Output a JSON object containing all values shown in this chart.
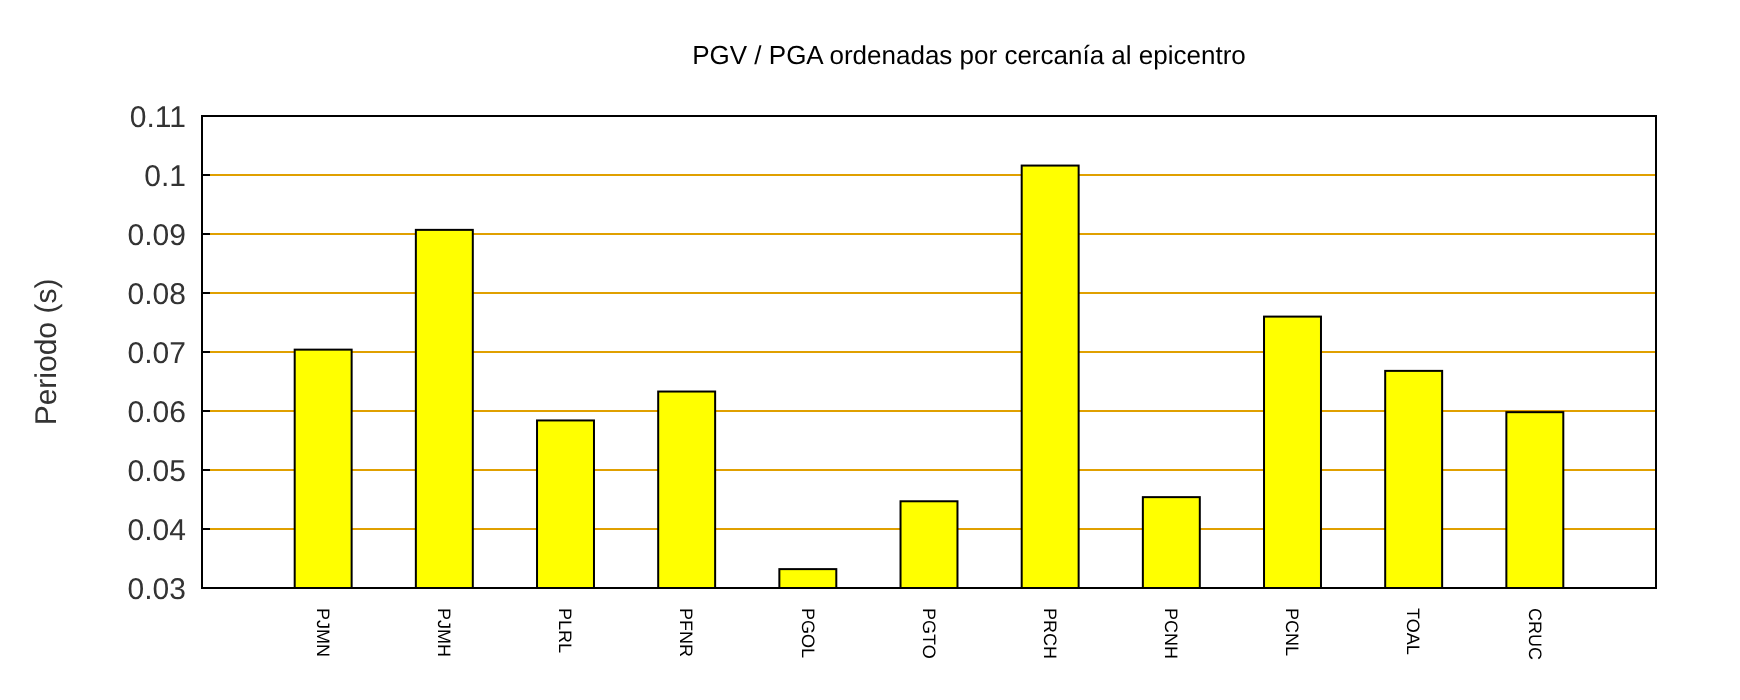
{
  "chart_data": {
    "type": "bar",
    "title": "PGV / PGA ordenadas por cercanía al epicentro",
    "ylabel": "Periodo (s)",
    "categories": [
      "PJMN",
      "PJMH",
      "PLRL",
      "PFNR",
      "PGOL",
      "PGTO",
      "PRCH",
      "PCNH",
      "PCNL",
      "TOAL",
      "CRUC"
    ],
    "values": [
      0.0704,
      0.0907,
      0.0584,
      0.0633,
      0.0332,
      0.0447,
      0.1016,
      0.0454,
      0.076,
      0.0668,
      0.0598
    ],
    "color": "#ffff00",
    "ylim": [
      0.03,
      0.11
    ],
    "yticks": [
      0.03,
      0.04,
      0.05,
      0.06,
      0.07,
      0.08,
      0.09,
      0.1,
      0.11
    ],
    "grid": "y"
  }
}
